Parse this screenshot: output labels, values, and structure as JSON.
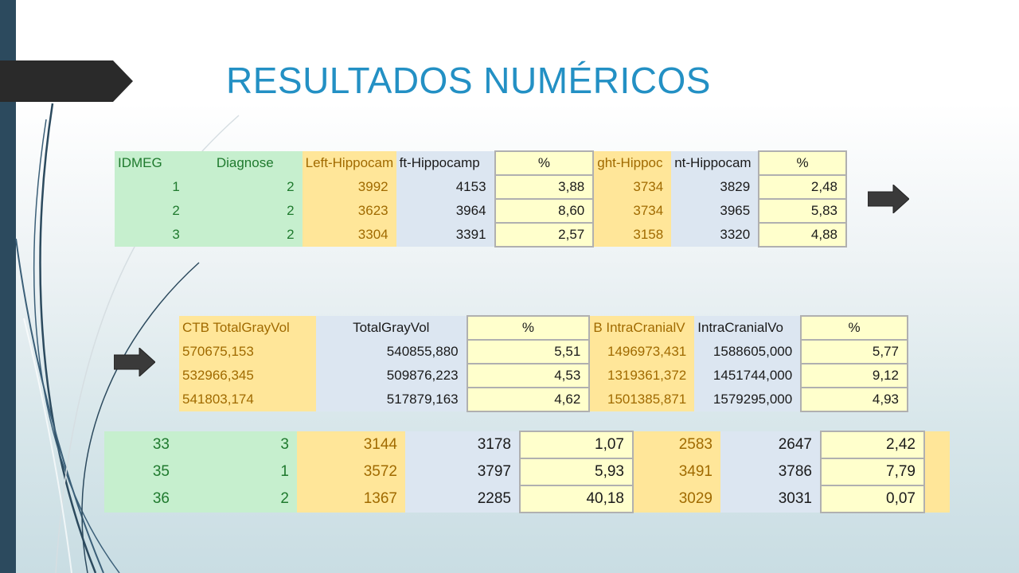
{
  "slide": {
    "title": "RESULTADOS NUMÉRICOS",
    "colors": {
      "title": "#2390c4",
      "left_bar": "#2c4a5e",
      "green_fill": "#c6efce",
      "gold_fill": "#ffe699",
      "blue_fill": "#dce6f1",
      "yellow_fill": "#ffffcc"
    },
    "icons": [
      "right-arrow-icon",
      "right-arrow-icon"
    ]
  },
  "table_hippocampus": {
    "headers": [
      "IDMEG",
      "Diagnose",
      "Left-Hippocam",
      "ft-Hippocamp",
      "%",
      "ght-Hippoc",
      "nt-Hippocam",
      "%"
    ],
    "rows": [
      [
        "1",
        "2",
        "3992",
        "4153",
        "3,88",
        "3734",
        "3829",
        "2,48"
      ],
      [
        "2",
        "2",
        "3623",
        "3964",
        "8,60",
        "3734",
        "3965",
        "5,83"
      ],
      [
        "3",
        "2",
        "3304",
        "3391",
        "2,57",
        "3158",
        "3320",
        "4,88"
      ]
    ]
  },
  "table_volumes": {
    "headers": [
      "CTB TotalGrayVol",
      "TotalGrayVol",
      "%",
      "B IntraCranialV",
      "IntraCranialVo",
      "%"
    ],
    "rows": [
      [
        "570675,153",
        "540855,880",
        "5,51",
        "1496973,431",
        "1588605,000",
        "5,77"
      ],
      [
        "532966,345",
        "509876,223",
        "4,53",
        "1319361,372",
        "1451744,000",
        "9,12"
      ],
      [
        "541803,174",
        "517879,163",
        "4,62",
        "1501385,871",
        "1579295,000",
        "4,93"
      ]
    ]
  },
  "table_hippocampus_tail": {
    "rows": [
      [
        "33",
        "3",
        "3144",
        "3178",
        "1,07",
        "2583",
        "2647",
        "2,42"
      ],
      [
        "35",
        "1",
        "3572",
        "3797",
        "5,93",
        "3491",
        "3786",
        "7,79"
      ],
      [
        "36",
        "2",
        "1367",
        "2285",
        "40,18",
        "3029",
        "3031",
        "0,07"
      ]
    ]
  }
}
